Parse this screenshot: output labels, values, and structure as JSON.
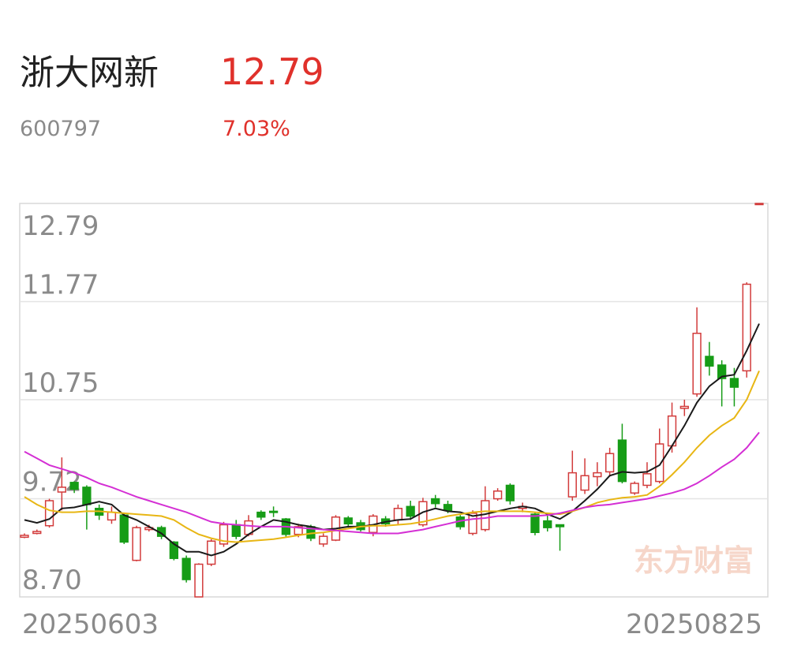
{
  "header": {
    "name": "浙大网新",
    "price": "12.79",
    "code": "600797",
    "change": "7.03%"
  },
  "chart_data": {
    "type": "candlestick",
    "categories": [
      "20250603",
      null,
      null,
      null,
      null,
      null,
      null,
      null,
      null,
      null,
      null,
      null,
      null,
      null,
      null,
      null,
      null,
      null,
      null,
      null,
      null,
      null,
      null,
      null,
      null,
      null,
      null,
      null,
      null,
      null,
      null,
      null,
      null,
      null,
      null,
      null,
      null,
      null,
      null,
      null,
      null,
      null,
      null,
      null,
      null,
      null,
      null,
      null,
      null,
      null,
      null,
      null,
      null,
      null,
      null,
      null,
      null,
      null,
      null,
      "20250825"
    ],
    "open": [
      9.32,
      9.36,
      9.44,
      9.79,
      9.89,
      9.84,
      9.62,
      9.5,
      9.55,
      9.08,
      9.4,
      9.42,
      9.27,
      9.1,
      8.7,
      9.04,
      9.25,
      9.45,
      9.35,
      9.58,
      9.59,
      9.51,
      9.35,
      9.43,
      9.25,
      9.29,
      9.52,
      9.47,
      9.37,
      9.51,
      9.5,
      9.64,
      9.45,
      9.72,
      9.66,
      9.53,
      9.36,
      9.4,
      9.72,
      9.86,
      9.62,
      9.56,
      9.49,
      9.45,
      9.74,
      9.81,
      9.95,
      10.0,
      10.33,
      9.78,
      9.86,
      9.9,
      10.27,
      10.66,
      10.81,
      11.2,
      11.11,
      10.97,
      11.05,
      12.79
    ],
    "high": [
      9.36,
      9.4,
      9.72,
      10.15,
      9.9,
      9.86,
      9.66,
      9.64,
      9.57,
      9.44,
      9.45,
      9.44,
      9.28,
      9.13,
      9.05,
      9.3,
      9.48,
      9.5,
      9.55,
      9.6,
      9.64,
      9.52,
      9.46,
      9.45,
      9.36,
      9.55,
      9.54,
      9.5,
      9.56,
      9.54,
      9.66,
      9.7,
      9.73,
      9.76,
      9.7,
      9.55,
      9.6,
      9.85,
      9.83,
      9.88,
      9.68,
      9.58,
      9.56,
      9.45,
      10.22,
      10.14,
      10.1,
      10.25,
      10.5,
      9.9,
      10.1,
      10.45,
      10.72,
      10.75,
      11.71,
      11.35,
      11.16,
      11.08,
      11.97,
      12.79
    ],
    "low": [
      9.31,
      9.35,
      9.42,
      9.6,
      9.78,
      9.4,
      9.5,
      9.46,
      9.25,
      9.07,
      9.38,
      9.3,
      9.08,
      8.85,
      8.7,
      9.02,
      9.22,
      9.3,
      9.33,
      9.5,
      9.53,
      9.32,
      9.32,
      9.28,
      9.22,
      9.28,
      9.42,
      9.38,
      9.33,
      9.43,
      9.45,
      9.5,
      9.43,
      9.63,
      9.57,
      9.4,
      9.34,
      9.38,
      9.7,
      9.66,
      9.58,
      9.34,
      9.38,
      9.18,
      9.7,
      9.77,
      9.85,
      9.95,
      9.88,
      9.76,
      9.83,
      9.88,
      10.2,
      10.58,
      10.78,
      11.0,
      10.68,
      10.68,
      10.98,
      12.79
    ],
    "close": [
      9.34,
      9.38,
      9.7,
      9.84,
      9.82,
      9.66,
      9.55,
      9.58,
      9.27,
      9.42,
      9.42,
      9.33,
      9.1,
      8.88,
      9.04,
      9.28,
      9.45,
      9.33,
      9.49,
      9.53,
      9.58,
      9.35,
      9.43,
      9.31,
      9.33,
      9.53,
      9.46,
      9.4,
      9.54,
      9.46,
      9.62,
      9.54,
      9.69,
      9.67,
      9.6,
      9.43,
      9.57,
      9.7,
      9.8,
      9.7,
      9.64,
      9.37,
      9.42,
      9.43,
      9.99,
      9.96,
      9.99,
      10.19,
      9.9,
      9.88,
      9.98,
      10.29,
      10.58,
      10.68,
      11.44,
      11.1,
      10.97,
      10.88,
      11.95,
      12.79
    ],
    "up_color": "#d23b3b",
    "down_color": "#169c16",
    "lines": [
      {
        "color": "#1a1a1a",
        "values": [
          9.5,
          9.47,
          9.51,
          9.62,
          9.63,
          9.66,
          9.69,
          9.66,
          9.55,
          9.5,
          9.43,
          9.36,
          9.25,
          9.17,
          9.17,
          9.13,
          9.17,
          9.25,
          9.35,
          9.43,
          9.5,
          9.48,
          9.45,
          9.43,
          9.4,
          9.41,
          9.43,
          9.43,
          9.45,
          9.48,
          9.5,
          9.51,
          9.58,
          9.62,
          9.59,
          9.58,
          9.54,
          9.56,
          9.59,
          9.62,
          9.64,
          9.62,
          9.56,
          9.51,
          9.59,
          9.7,
          9.82,
          9.96,
          10.0,
          9.99,
          10.0,
          10.07,
          10.27,
          10.48,
          10.72,
          10.89,
          10.99,
          11.01,
          11.26,
          11.54
        ]
      },
      {
        "color": "#e8b614",
        "values": [
          9.74,
          9.66,
          9.6,
          9.58,
          9.58,
          9.59,
          9.59,
          9.58,
          9.57,
          9.56,
          9.55,
          9.54,
          9.5,
          9.42,
          9.35,
          9.31,
          9.28,
          9.27,
          9.28,
          9.29,
          9.3,
          9.32,
          9.34,
          9.36,
          9.37,
          9.39,
          9.41,
          9.43,
          9.44,
          9.44,
          9.45,
          9.46,
          9.48,
          9.51,
          9.54,
          9.56,
          9.58,
          9.59,
          9.59,
          9.59,
          9.59,
          9.58,
          9.57,
          9.56,
          9.59,
          9.63,
          9.68,
          9.71,
          9.73,
          9.74,
          9.76,
          9.85,
          9.97,
          10.1,
          10.25,
          10.38,
          10.48,
          10.56,
          10.75,
          11.05
        ]
      },
      {
        "color": "#d42fd4",
        "values": [
          10.21,
          10.14,
          10.07,
          10.03,
          9.99,
          9.94,
          9.88,
          9.84,
          9.79,
          9.74,
          9.7,
          9.66,
          9.62,
          9.58,
          9.53,
          9.48,
          9.46,
          9.45,
          9.44,
          9.43,
          9.43,
          9.43,
          9.42,
          9.41,
          9.4,
          9.39,
          9.38,
          9.37,
          9.36,
          9.36,
          9.36,
          9.38,
          9.4,
          9.43,
          9.46,
          9.49,
          9.51,
          9.52,
          9.54,
          9.54,
          9.54,
          9.54,
          9.55,
          9.57,
          9.6,
          9.63,
          9.65,
          9.66,
          9.68,
          9.7,
          9.72,
          9.75,
          9.78,
          9.82,
          9.88,
          9.96,
          10.05,
          10.13,
          10.25,
          10.41
        ]
      }
    ],
    "ylim": [
      8.7,
      12.79
    ],
    "yticks": [
      {
        "value": 8.7,
        "label": "8.70"
      },
      9.72,
      10.75,
      11.77,
      12.79
    ],
    "grid": true,
    "watermark": "东方财富"
  }
}
